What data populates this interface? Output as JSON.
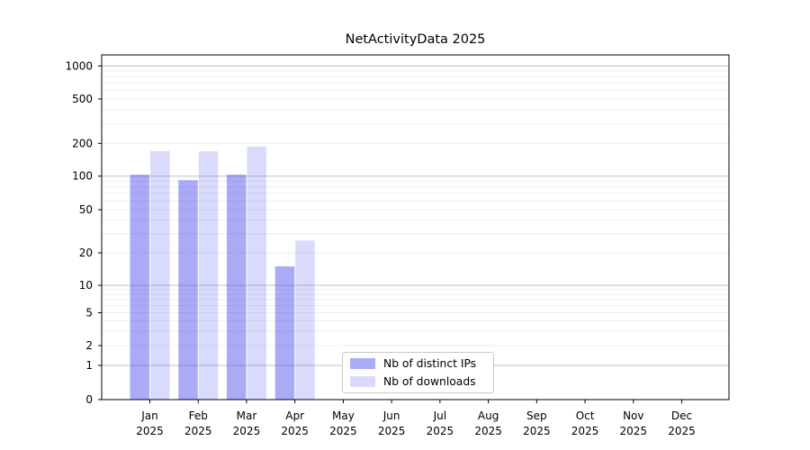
{
  "title": "NetActivityData 2025",
  "chart_data": {
    "type": "bar",
    "categories": [
      "Jan",
      "Feb",
      "Mar",
      "Apr",
      "May",
      "Jun",
      "Jul",
      "Aug",
      "Sep",
      "Oct",
      "Nov",
      "Dec"
    ],
    "year_label": "2025",
    "series": [
      {
        "name": "Nb of distinct IPs",
        "color": "rgba(85,85,240,0.5)",
        "values": [
          103,
          92,
          103,
          15,
          0,
          0,
          0,
          0,
          0,
          0,
          0,
          0
        ]
      },
      {
        "name": "Nb of downloads",
        "color": "rgba(85,85,240,0.22)",
        "values": [
          170,
          169,
          187,
          26,
          0,
          0,
          0,
          0,
          0,
          0,
          0,
          0
        ]
      }
    ],
    "yticks": [
      0,
      1,
      2,
      5,
      10,
      20,
      50,
      100,
      200,
      500,
      1000
    ],
    "ylim": [
      0,
      1000
    ],
    "yscale": "symlog",
    "xlabel": "",
    "ylabel": "",
    "grid": "horizontal major+minor",
    "legend_position": "inside lower center"
  },
  "colors": {
    "background": "#ffffff",
    "axis": "#000000",
    "grid_major": "#c0c0c0",
    "grid_minor": "#ececec",
    "legend_border": "#c9c9c9",
    "bar_ips": "rgba(85,85,240,0.5)",
    "bar_downloads": "rgba(85,85,240,0.22)"
  }
}
